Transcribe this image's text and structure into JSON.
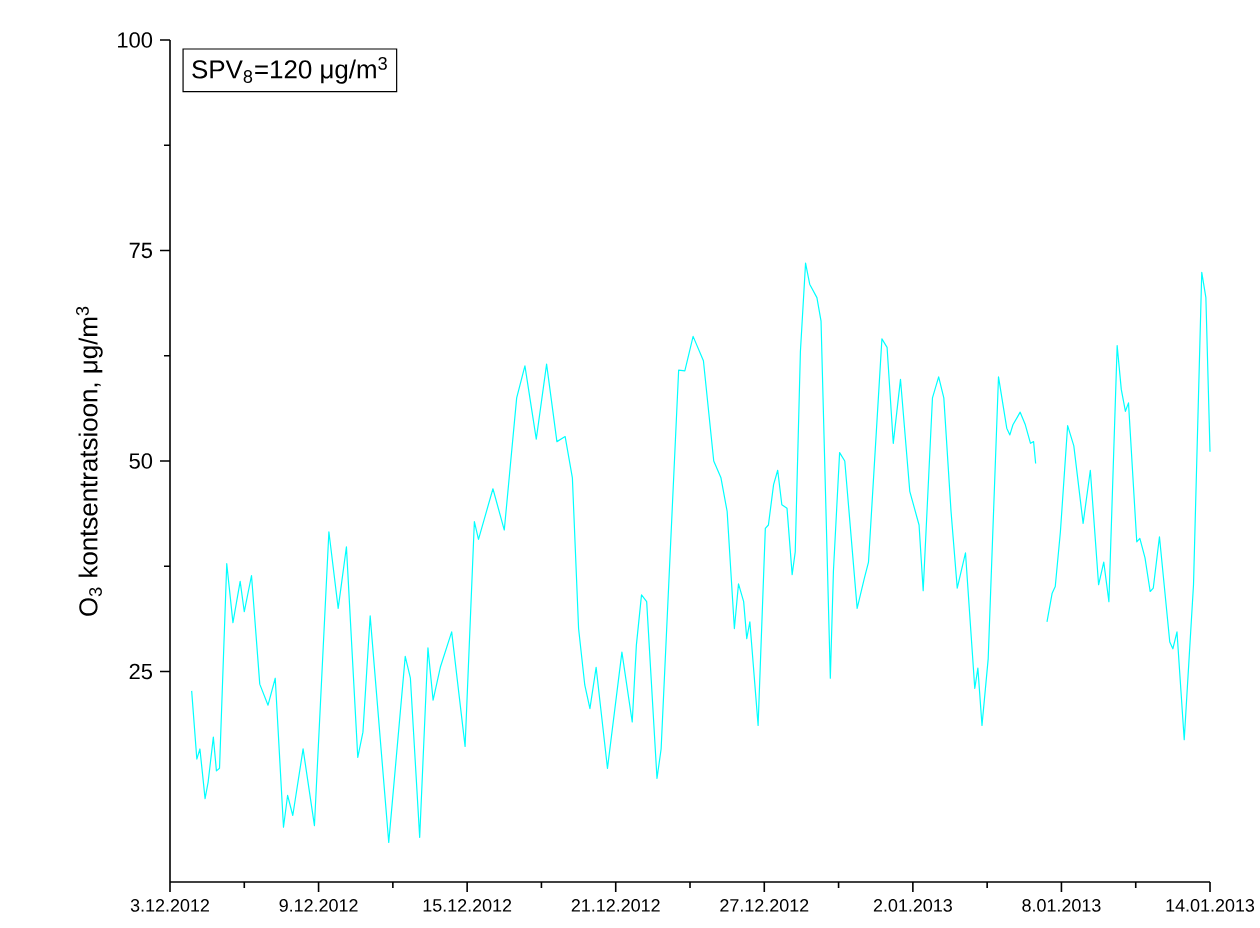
{
  "chart_data": {
    "type": "line",
    "ylabel": "O$_{3}$ kontsentratsioon, μg/m$^{3}$",
    "annotations": [
      "SPV$_{8}$=120 μg/m$^{3}$"
    ],
    "xlim": [
      "2012-12-03",
      "2013-01-14"
    ],
    "ylim": [
      0,
      100
    ],
    "xticks": [
      {
        "value": "2012-12-03",
        "label": "3.12.2012"
      },
      {
        "value": "2012-12-09",
        "label": "9.12.2012"
      },
      {
        "value": "2012-12-15",
        "label": "15.12.2012"
      },
      {
        "value": "2012-12-21",
        "label": "21.12.2012"
      },
      {
        "value": "2012-12-27",
        "label": "27.12.2012"
      },
      {
        "value": "2013-01-02",
        "label": "2.01.2013"
      },
      {
        "value": "2013-01-08",
        "label": "8.01.2013"
      },
      {
        "value": "2013-01-14",
        "label": "14.01.2013"
      }
    ],
    "yticks": [
      25,
      50,
      75,
      100
    ],
    "grid": false,
    "marker": "none",
    "line_style": "solid",
    "series": [
      {
        "color": "#00ffff",
        "x": [
          "2012-12-03T21:00",
          "2012-12-04T02:00",
          "2012-12-04T05:00",
          "2012-12-04T10:00",
          "2012-12-04T13:00",
          "2012-12-04T18:00",
          "2012-12-04T21:00",
          "2012-12-05T00:00",
          "2012-12-05T07:00",
          "2012-12-05T13:00",
          "2012-12-05T20:00",
          "2012-12-06T00:00",
          "2012-12-06T07:00",
          "2012-12-06T15:00",
          "2012-12-06T23:00",
          "2012-12-07T06:00",
          "2012-12-07T14:00",
          "2012-12-07T18:00",
          "2012-12-07T23:00",
          "2012-12-08T09:00",
          "2012-12-08T20:00",
          "2012-12-09T10:00",
          "2012-12-09T19:00",
          "2012-12-10T03:00",
          "2012-12-10T14:00",
          "2012-12-10T19:00",
          "2012-12-11T02:00",
          "2012-12-11T20:00",
          "2012-12-12T12:00",
          "2012-12-12T17:00",
          "2012-12-13T02:00",
          "2012-12-13T10:00",
          "2012-12-13T15:00",
          "2012-12-13T22:00",
          "2012-12-14T09:00",
          "2012-12-14T22:00",
          "2012-12-15T07:00",
          "2012-12-15T11:00",
          "2012-12-16T01:00",
          "2012-12-16T12:00",
          "2012-12-17T00:00",
          "2012-12-17T08:00",
          "2012-12-17T19:00",
          "2012-12-18T05:00",
          "2012-12-18T15:00",
          "2012-12-18T23:00",
          "2012-12-19T06:00",
          "2012-12-19T12:00",
          "2012-12-19T18:00",
          "2012-12-19T23:00",
          "2012-12-20T05:00",
          "2012-12-20T16:00",
          "2012-12-21T06:00",
          "2012-12-21T16:00",
          "2012-12-21T20:00",
          "2012-12-22T01:00",
          "2012-12-22T06:00",
          "2012-12-22T16:00",
          "2012-12-22T20:00",
          "2012-12-23T13:00",
          "2012-12-23T19:00",
          "2012-12-24T03:00",
          "2012-12-24T13:00",
          "2012-12-24T23:00",
          "2012-12-25T06:00",
          "2012-12-25T12:00",
          "2012-12-25T19:00",
          "2012-12-25T23:00",
          "2012-12-26T04:00",
          "2012-12-26T07:00",
          "2012-12-26T10:00",
          "2012-12-26T18:00",
          "2012-12-27T01:00",
          "2012-12-27T04:00",
          "2012-12-27T09:00",
          "2012-12-27T13:00",
          "2012-12-27T17:00",
          "2012-12-27T22:00",
          "2012-12-28T03:00",
          "2012-12-28T06:00",
          "2012-12-28T11:00",
          "2012-12-28T16:00",
          "2012-12-28T20:00",
          "2012-12-29T03:00",
          "2012-12-29T07:00",
          "2012-12-29T16:00",
          "2012-12-29T19:00",
          "2012-12-30T01:00",
          "2012-12-30T06:00",
          "2012-12-30T18:00",
          "2012-12-31T01:00",
          "2012-12-31T05:00",
          "2012-12-31T18:00",
          "2012-12-31T23:00",
          "2013-01-01T05:00",
          "2013-01-01T12:00",
          "2013-01-01T21:00",
          "2013-01-02T06:00",
          "2013-01-02T10:00",
          "2013-01-02T19:00",
          "2013-01-03T01:00",
          "2013-01-03T06:00",
          "2013-01-03T13:00",
          "2013-01-03T19:00",
          "2013-01-04T03:00",
          "2013-01-04T12:00",
          "2013-01-04T15:00",
          "2013-01-04T19:00",
          "2013-01-05T01:00",
          "2013-01-05T11:00",
          "2013-01-05T19:00",
          "2013-01-05T22:00",
          "2013-01-06T01:00",
          "2013-01-06T08:00",
          "2013-01-06T13:00",
          "2013-01-06T18:00",
          "2013-01-06T21:00",
          "2013-01-06T23:00",
          "2013-01-07T04:00",
          "2013-01-07T10:00",
          "2013-01-07T15:00",
          "2013-01-07T18:00",
          "2013-01-07T23:00",
          "2013-01-08T06:00",
          "2013-01-08T12:00",
          "2013-01-08T21:00",
          "2013-01-09T04:00",
          "2013-01-09T12:00",
          "2013-01-09T17:00",
          "2013-01-09T22:00",
          "2013-01-10T06:00",
          "2013-01-10T10:00",
          "2013-01-10T14:00",
          "2013-01-10T17:00",
          "2013-01-11T01:00",
          "2013-01-11T04:00",
          "2013-01-11T09:00",
          "2013-01-11T14:00",
          "2013-01-11T17:00",
          "2013-01-11T23:00",
          "2013-01-12T09:00",
          "2013-01-12T12:00",
          "2013-01-12T16:00",
          "2013-01-12T23:00",
          "2013-01-13T08:00",
          "2013-01-13T16:00",
          "2013-01-13T20:00",
          "2013-01-14T00:00"
        ],
        "values": [
          22.7,
          14.6,
          15.8,
          9.9,
          11.9,
          17.2,
          13.2,
          13.5,
          37.8,
          30.8,
          35.7,
          32.1,
          36.4,
          23.5,
          21.0,
          24.2,
          6.5,
          10.3,
          7.9,
          15.8,
          6.7,
          41.6,
          32.5,
          39.8,
          14.8,
          17.8,
          31.6,
          4.7,
          26.8,
          24.2,
          5.3,
          27.8,
          21.6,
          25.5,
          29.7,
          16.1,
          42.8,
          40.7,
          46.7,
          41.8,
          57.5,
          61.3,
          52.6,
          61.5,
          52.3,
          52.9,
          48.0,
          30.1,
          23.4,
          20.6,
          25.5,
          13.5,
          27.3,
          19.0,
          28.1,
          34.1,
          33.3,
          12.3,
          15.8,
          60.8,
          60.7,
          64.8,
          61.9,
          50.0,
          48.0,
          44.0,
          30.1,
          35.4,
          33.3,
          28.9,
          30.9,
          18.6,
          42.0,
          42.4,
          47.2,
          48.9,
          44.8,
          44.4,
          36.5,
          39.2,
          63.0,
          73.5,
          71.0,
          69.4,
          66.6,
          24.2,
          36.9,
          51.0,
          50.0,
          32.5,
          36.1,
          38.0,
          64.5,
          63.5,
          52.1,
          59.7,
          46.4,
          42.4,
          34.6,
          57.5,
          60.0,
          57.5,
          44.0,
          34.9,
          39.1,
          23.0,
          25.4,
          18.6,
          26.5,
          60.0,
          53.9,
          53.1,
          54.3,
          55.8,
          54.3,
          52.1,
          52.3,
          49.7,
          null,
          30.9,
          34.3,
          35.1,
          41.6,
          54.2,
          51.8,
          42.6,
          48.9,
          35.3,
          38.0,
          33.3,
          63.7,
          58.5,
          55.9,
          56.9,
          40.4,
          40.8,
          38.5,
          34.5,
          34.9,
          41.0,
          28.5,
          27.7,
          29.7,
          16.9,
          35.3,
          72.4,
          69.4,
          51.1
        ]
      }
    ]
  }
}
